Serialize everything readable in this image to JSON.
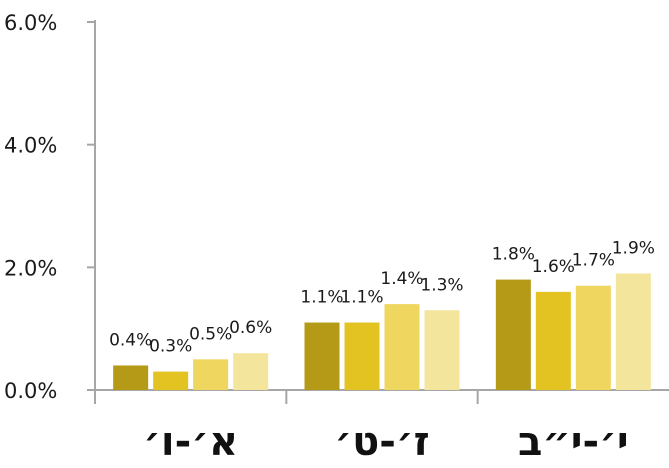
{
  "chart_data": {
    "type": "bar",
    "categories": [
      "א׳-ו׳",
      "ז׳-ט׳",
      "י׳-י״ב"
    ],
    "series": [
      {
        "values": [
          0.4,
          1.1,
          1.8
        ],
        "labels": [
          "0.4%",
          "1.1%",
          "1.8%"
        ],
        "color": "#b59a17"
      },
      {
        "values": [
          0.3,
          1.1,
          1.6
        ],
        "labels": [
          "0.3%",
          "1.1%",
          "1.6%"
        ],
        "color": "#e3c322"
      },
      {
        "values": [
          0.5,
          1.4,
          1.7
        ],
        "labels": [
          "0.5%",
          "1.4%",
          "1.7%"
        ],
        "color": "#efd65e"
      },
      {
        "values": [
          0.6,
          1.3,
          1.9
        ],
        "labels": [
          "0.6%",
          "1.3%",
          "1.9%"
        ],
        "color": "#f3e59b"
      }
    ],
    "yticks": [
      "0.0%",
      "2.0%",
      "4.0%",
      "6.0%"
    ],
    "ytick_values": [
      0,
      2,
      4,
      6
    ],
    "ylim": [
      0,
      6
    ],
    "title": "",
    "xlabel": "",
    "ylabel": "",
    "grid": false,
    "axis_color": "#a6a6a6"
  }
}
